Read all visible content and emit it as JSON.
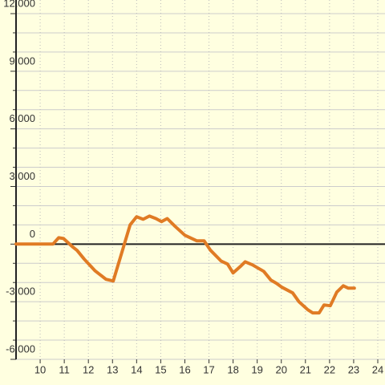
{
  "chart_data": {
    "type": "line",
    "x": [
      9,
      10.53,
      10.77,
      10.97,
      11.33,
      11.53,
      11.83,
      12.27,
      12.73,
      13.03,
      13.33,
      13.73,
      14,
      14.27,
      14.53,
      14.8,
      15.03,
      15.27,
      15.6,
      16,
      16.5,
      16.8,
      17.07,
      17.5,
      17.77,
      18,
      18.3,
      18.5,
      18.8,
      19.27,
      19.57,
      19.8,
      20.03,
      20.47,
      20.73,
      21.1,
      21.3,
      21.57,
      21.77,
      22.03,
      22.3,
      22.57,
      22.77,
      23.03
    ],
    "series": [
      {
        "color": "#e07b24",
        "values": [
          0,
          0,
          330,
          290,
          -130,
          -330,
          -790,
          -1380,
          -1830,
          -1920,
          -670,
          1000,
          1420,
          1290,
          1460,
          1330,
          1170,
          1330,
          920,
          460,
          170,
          170,
          -330,
          -880,
          -1040,
          -1500,
          -1170,
          -920,
          -1080,
          -1420,
          -1880,
          -2040,
          -2250,
          -2540,
          -3000,
          -3420,
          -3580,
          -3580,
          -3170,
          -3210,
          -2500,
          -2170,
          -2290,
          -2290
        ]
      }
    ],
    "xlim": [
      9,
      24
    ],
    "xticks": [
      10,
      11,
      12,
      13,
      14,
      15,
      16,
      17,
      18,
      19,
      20,
      21,
      22,
      23,
      24
    ],
    "ylim": [
      -6000,
      12000
    ],
    "yticks": [
      {
        "value": -6000,
        "label": "-6,000"
      },
      {
        "value": -3000,
        "label": "-3,000"
      },
      0,
      {
        "value": 3000,
        "label": "3,000"
      },
      {
        "value": 6000,
        "label": "6,000"
      },
      {
        "value": 9000,
        "label": "9,000"
      },
      {
        "value": 12000,
        "label": "12,000"
      }
    ],
    "minor_yticks": [
      -5000,
      -4000,
      -2000,
      -1000,
      1000,
      2000,
      4000,
      5000,
      7000,
      8000,
      10000,
      11000
    ],
    "grid": true
  }
}
